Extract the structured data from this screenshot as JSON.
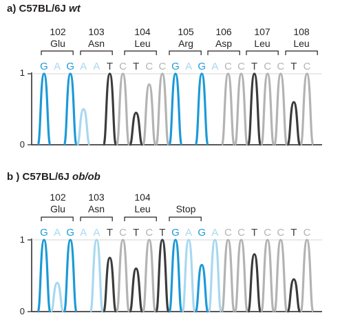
{
  "colors": {
    "G": "#1b9ad6",
    "A": "#a8d8f0",
    "C": "#b3b3b3",
    "T": "#3b3b3b"
  },
  "panels": [
    {
      "label_prefix": "a) C57BL/6J ",
      "label_italic": "wt",
      "y_ticks": [
        "1",
        "0"
      ],
      "codons": [
        {
          "num": "102",
          "aa": "Glu"
        },
        {
          "num": "103",
          "aa": "Asn"
        },
        {
          "num": "104",
          "aa": "Leu"
        },
        {
          "num": "105",
          "aa": "Arg"
        },
        {
          "num": "106",
          "aa": "Asp"
        },
        {
          "num": "107",
          "aa": "Leu"
        },
        {
          "num": "108",
          "aa": "Leu"
        }
      ],
      "bases": [
        "G",
        "A",
        "G",
        "A",
        "A",
        "T",
        "C",
        "T",
        "C",
        "C",
        "G",
        "A",
        "G",
        "A",
        "C",
        "C",
        "T",
        "C",
        "C",
        "T",
        "C"
      ],
      "peak_heights": [
        1.0,
        0.0,
        1.0,
        0.5,
        0.0,
        1.0,
        1.0,
        0.45,
        0.85,
        1.0,
        1.0,
        0.0,
        1.0,
        0.0,
        1.0,
        1.0,
        1.0,
        1.0,
        1.0,
        0.6,
        1.0
      ]
    },
    {
      "label_prefix": "b ) C57BL/6J ",
      "label_italic": "ob/ob",
      "y_ticks": [
        "1",
        "0"
      ],
      "codons": [
        {
          "num": "102",
          "aa": "Glu"
        },
        {
          "num": "103",
          "aa": "Asn"
        },
        {
          "num": "104",
          "aa": "Leu"
        },
        {
          "num": "",
          "aa": "Stop"
        }
      ],
      "bases": [
        "G",
        "A",
        "G",
        "A",
        "A",
        "T",
        "C",
        "T",
        "C",
        "T",
        "G",
        "A",
        "G",
        "A",
        "C",
        "C",
        "T",
        "C",
        "C",
        "T",
        "C"
      ],
      "peak_heights": [
        1.0,
        0.4,
        1.0,
        0.0,
        1.0,
        0.75,
        1.0,
        0.6,
        1.0,
        1.0,
        1.0,
        1.0,
        0.65,
        1.0,
        1.0,
        1.0,
        0.8,
        1.0,
        1.0,
        0.45,
        1.0
      ]
    }
  ]
}
